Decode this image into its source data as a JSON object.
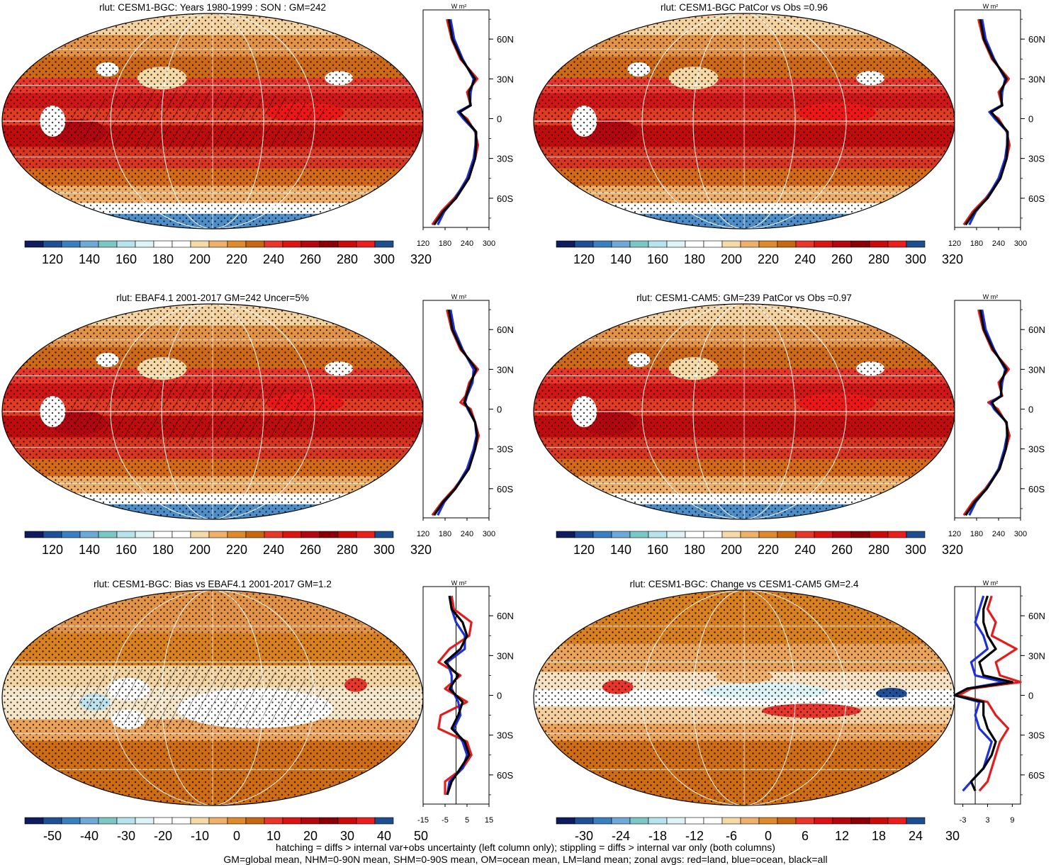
{
  "palettes": {
    "sequential": [
      "#0e1c5e",
      "#1f4f97",
      "#3a7fc0",
      "#6ea9d7",
      "#7cc7c5",
      "#b7e3ee",
      "#def3f6",
      "#ffffff",
      "#ffffff",
      "#f5d9a6",
      "#eeb06b",
      "#df8a2c",
      "#c7670f",
      "#e8362b",
      "#dc1313",
      "#b5050e",
      "#8b0006",
      "#cc0a0a",
      "#ec1d1d",
      "#1b4f8f"
    ],
    "diverging": [
      "#0e1c5e",
      "#1f4f97",
      "#3a7fc0",
      "#6ea9d7",
      "#7cc7c5",
      "#b7e3ee",
      "#def3f6",
      "#ffffff",
      "#ffffff",
      "#f5d9a6",
      "#eeb06b",
      "#df8a2c",
      "#c7670f",
      "#e8362b",
      "#dc1313",
      "#b5050e",
      "#8b0006",
      "#cc0a0a",
      "#ec1d1d",
      "#1b4f8f"
    ]
  },
  "line_colors": {
    "land": "#e51c1c",
    "ocean": "#1f2fe0",
    "all": "#000000"
  },
  "footnotes": [
    "hatching = diffs > internal var+obs uncertainty (left column only); stippling = diffs > internal var only (both columns)",
    "GM=global mean, NHM=0-90N mean, SHM=0-90S mean, OM=ocean mean, LM=land mean; zonal avgs: red=land, blue=ocean, black=all"
  ],
  "chart_data": [
    {
      "type": "heatmap",
      "title": "rlut: CESM1-BGC: Years 1980-1999 : SON : GM=242",
      "kind": "mean",
      "colorbar_ticks": [
        "120",
        "140",
        "160",
        "180",
        "200",
        "220",
        "240",
        "260",
        "280",
        "300",
        "320"
      ],
      "zonal": {
        "unit": "W m²",
        "lat_ticks": [
          "60N",
          "30N",
          "0",
          "30S",
          "60S"
        ],
        "x_ticks": [
          "120",
          "180",
          "240",
          "300"
        ],
        "xlim": [
          120,
          300
        ],
        "lat": [
          75,
          60,
          45,
          30,
          20,
          10,
          5,
          0,
          -10,
          -20,
          -30,
          -45,
          -60,
          -70,
          -80
        ],
        "all": [
          190,
          200,
          225,
          262,
          245,
          250,
          220,
          235,
          265,
          265,
          262,
          245,
          210,
          175,
          150
        ],
        "land": [
          185,
          198,
          222,
          268,
          240,
          250,
          215,
          240,
          262,
          270,
          262,
          245,
          205,
          170,
          145
        ],
        "ocean": [
          195,
          205,
          228,
          258,
          250,
          248,
          215,
          230,
          264,
          263,
          258,
          240,
          208,
          178,
          160
        ],
        "vline": null
      }
    },
    {
      "type": "heatmap",
      "title": "rlut: CESM1-BGC PatCor vs Obs =0.96",
      "kind": "mean",
      "colorbar_ticks": [
        "120",
        "140",
        "160",
        "180",
        "200",
        "220",
        "240",
        "260",
        "280",
        "300",
        "320"
      ],
      "zonal": {
        "unit": "W m²",
        "lat_ticks": [
          "60N",
          "30N",
          "0",
          "30S",
          "60S"
        ],
        "x_ticks": [
          "120",
          "180",
          "240",
          "300"
        ],
        "xlim": [
          120,
          300
        ],
        "lat": [
          75,
          60,
          45,
          30,
          20,
          10,
          5,
          0,
          -10,
          -20,
          -30,
          -45,
          -60,
          -70,
          -80
        ],
        "all": [
          190,
          200,
          225,
          262,
          245,
          250,
          220,
          235,
          265,
          265,
          262,
          245,
          210,
          175,
          150
        ],
        "land": [
          185,
          198,
          222,
          268,
          240,
          250,
          215,
          240,
          262,
          270,
          262,
          245,
          205,
          170,
          145
        ],
        "ocean": [
          195,
          205,
          228,
          258,
          250,
          248,
          215,
          230,
          264,
          263,
          258,
          240,
          208,
          178,
          160
        ],
        "vline": null
      }
    },
    {
      "type": "heatmap",
      "title": "rlut: EBAF4.1 2001-2017 GM=242 Uncer=5%",
      "kind": "mean",
      "colorbar_ticks": [
        "120",
        "140",
        "160",
        "180",
        "200",
        "220",
        "240",
        "260",
        "280",
        "300",
        "320"
      ],
      "zonal": {
        "unit": "W m²",
        "lat_ticks": [
          "60N",
          "30N",
          "0",
          "30S",
          "60S"
        ],
        "x_ticks": [
          "120",
          "180",
          "240",
          "300"
        ],
        "xlim": [
          120,
          300
        ],
        "lat": [
          75,
          60,
          45,
          30,
          20,
          10,
          5,
          0,
          -10,
          -20,
          -30,
          -45,
          -60,
          -70,
          -80
        ],
        "all": [
          190,
          200,
          225,
          265,
          250,
          238,
          232,
          245,
          262,
          268,
          262,
          245,
          208,
          175,
          150
        ],
        "land": [
          185,
          198,
          222,
          270,
          246,
          236,
          222,
          250,
          262,
          272,
          262,
          245,
          205,
          172,
          145
        ],
        "ocean": [
          195,
          205,
          228,
          258,
          255,
          240,
          235,
          242,
          262,
          266,
          258,
          240,
          208,
          178,
          160
        ],
        "vline": null
      }
    },
    {
      "type": "heatmap",
      "title": "rlut: CESM1-CAM5: GM=239 PatCor vs Obs =0.97",
      "kind": "mean",
      "colorbar_ticks": [
        "120",
        "140",
        "160",
        "180",
        "200",
        "220",
        "240",
        "260",
        "280",
        "300",
        "320"
      ],
      "zonal": {
        "unit": "W m²",
        "lat_ticks": [
          "60N",
          "30N",
          "0",
          "30S",
          "60S"
        ],
        "x_ticks": [
          "120",
          "180",
          "240",
          "300"
        ],
        "xlim": [
          120,
          300
        ],
        "lat": [
          75,
          60,
          45,
          30,
          20,
          10,
          5,
          0,
          -10,
          -20,
          -30,
          -45,
          -60,
          -70,
          -80
        ],
        "all": [
          190,
          200,
          225,
          262,
          245,
          248,
          222,
          232,
          262,
          265,
          260,
          243,
          208,
          175,
          150
        ],
        "land": [
          185,
          198,
          222,
          268,
          240,
          250,
          212,
          238,
          260,
          270,
          260,
          243,
          204,
          170,
          145
        ],
        "ocean": [
          195,
          205,
          228,
          258,
          250,
          246,
          218,
          228,
          262,
          263,
          256,
          240,
          207,
          178,
          160
        ],
        "vline": null
      }
    },
    {
      "type": "heatmap",
      "title": "rlut: CESM1-BGC: Bias vs EBAF4.1 2001-2017  GM=1.2",
      "kind": "bias",
      "colorbar_ticks": [
        "-50",
        "-40",
        "-30",
        "-20",
        "-10",
        "0",
        "10",
        "20",
        "30",
        "40",
        "50"
      ],
      "zonal": {
        "unit": "W m²",
        "lat_ticks": [
          "60N",
          "30N",
          "0",
          "30S",
          "60S"
        ],
        "x_ticks": [
          "-15",
          "-5",
          "5",
          "15"
        ],
        "xlim": [
          -15,
          15
        ],
        "lat": [
          75,
          65,
          55,
          45,
          35,
          25,
          15,
          5,
          -5,
          -15,
          -25,
          -35,
          -45,
          -55,
          -65,
          -75
        ],
        "all": [
          -3,
          -2,
          3,
          5,
          2,
          -5,
          1,
          -3,
          3,
          1,
          -2,
          4,
          6,
          2,
          -2,
          -4
        ],
        "land": [
          -2,
          -1,
          7,
          6,
          -3,
          -8,
          2,
          -5,
          5,
          -7,
          -8,
          5,
          7,
          3,
          -5,
          -5
        ],
        "ocean": [
          -3,
          -2,
          0,
          4,
          4,
          -4,
          -2,
          -2,
          1,
          2,
          -1,
          3,
          5,
          3,
          -3,
          -4
        ],
        "vline": 0
      }
    },
    {
      "type": "heatmap",
      "title": "rlut: CESM1-BGC: Change vs CESM1-CAM5 GM=2.4",
      "kind": "change",
      "colorbar_ticks": [
        "-30",
        "-24",
        "-18",
        "-12",
        "-6",
        "0",
        "6",
        "12",
        "18",
        "24",
        "30"
      ],
      "zonal": {
        "unit": "W m²",
        "lat_ticks": [
          "60N",
          "30N",
          "0",
          "30S",
          "60S"
        ],
        "x_ticks": [
          "-3",
          "3",
          "9"
        ],
        "xlim": [
          -5,
          11
        ],
        "lat": [
          75,
          65,
          55,
          45,
          35,
          25,
          15,
          10,
          5,
          0,
          -5,
          -15,
          -25,
          -35,
          -45,
          -55,
          -65,
          -72
        ],
        "all": [
          3,
          2,
          2,
          3,
          5,
          1,
          2,
          9,
          -2,
          -5,
          2,
          2,
          3,
          5,
          4,
          2,
          -1,
          0
        ],
        "land": [
          4,
          3,
          5,
          4,
          10,
          5,
          6,
          11,
          -1,
          -4,
          3,
          5,
          8,
          6,
          5,
          4,
          3,
          1
        ],
        "ocean": [
          2,
          1,
          0,
          2,
          3,
          -1,
          0,
          7,
          -2,
          -5,
          1,
          0,
          1,
          4,
          3,
          2,
          -1,
          -3
        ],
        "vline": 0
      }
    }
  ]
}
